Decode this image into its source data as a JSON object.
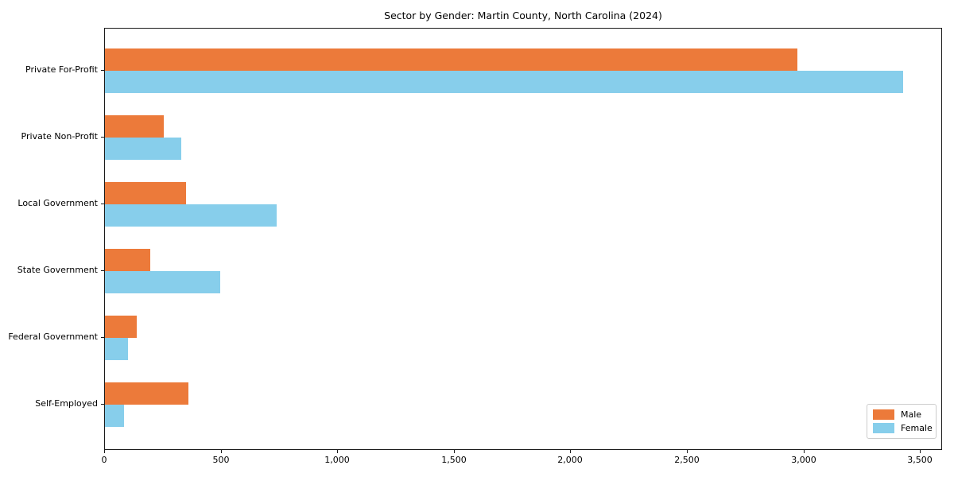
{
  "chart_data": {
    "type": "bar",
    "orientation": "horizontal",
    "title": "Sector by Gender: Martin County, North Carolina (2024)",
    "categories": [
      "Private For-Profit",
      "Private Non-Profit",
      "Local Government",
      "State Government",
      "Federal Government",
      "Self-Employed"
    ],
    "series": [
      {
        "name": "Male",
        "color": "#EC7A3A",
        "values": [
          2970,
          252,
          349,
          196,
          136,
          357
        ]
      },
      {
        "name": "Female",
        "color": "#87CEEB",
        "values": [
          3424,
          326,
          736,
          494,
          99,
          82
        ]
      }
    ],
    "xlim": [
      0,
      3595
    ],
    "xticks": [
      0,
      500,
      1000,
      1500,
      2000,
      2500,
      3000,
      3500
    ],
    "xtick_labels": [
      "0",
      "500",
      "1,000",
      "1,500",
      "2,000",
      "2,500",
      "3,000",
      "3,500"
    ],
    "xlabel": "",
    "ylabel": "",
    "grid": false,
    "legend_position": "lower right",
    "colors": {
      "male": "#EC7A3A",
      "female": "#87CEEB",
      "spine": "#1a1a1a",
      "text": "#000000"
    }
  }
}
